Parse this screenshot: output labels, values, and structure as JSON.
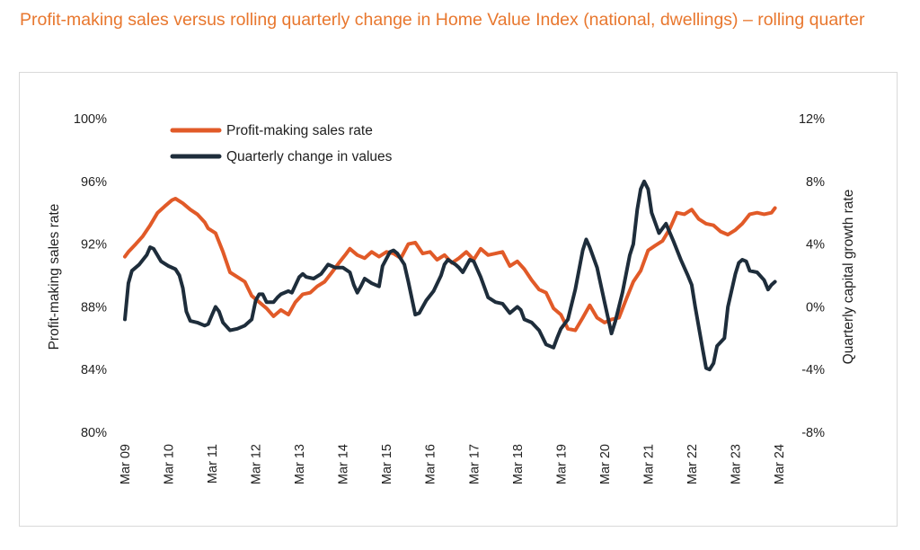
{
  "chart_data": {
    "type": "line",
    "title": "Profit-making sales versus rolling quarterly change in Home Value Index (national, dwellings) – rolling quarter",
    "ylabel": "Profit-making sales rate",
    "y2label": "Quarterly capital growth rate",
    "ylim": [
      80,
      100
    ],
    "y2lim": [
      -8,
      12
    ],
    "yticks": [
      "100%",
      "96%",
      "92%",
      "88%",
      "84%",
      "80%"
    ],
    "y2ticks": [
      "12%",
      "8%",
      "4%",
      "0%",
      "-4%",
      "-8%"
    ],
    "xlim": [
      2009.17,
      2024.17
    ],
    "xticks": [
      "Mar 09",
      "Mar 10",
      "Mar 11",
      "Mar 12",
      "Mar 13",
      "Mar 14",
      "Mar 15",
      "Mar 16",
      "Mar 17",
      "Mar 18",
      "Mar 19",
      "Mar 20",
      "Mar 21",
      "Mar 22",
      "Mar 23",
      "Mar 24"
    ],
    "legend_position": "top-left",
    "grid": false,
    "series": [
      {
        "name": "Profit-making sales rate",
        "axis": "left",
        "color": "#e15a28",
        "points": [
          [
            2009.17,
            91.2
          ],
          [
            2009.25,
            91.5
          ],
          [
            2009.42,
            92.0
          ],
          [
            2009.58,
            92.5
          ],
          [
            2009.75,
            93.2
          ],
          [
            2009.92,
            94.0
          ],
          [
            2010.08,
            94.4
          ],
          [
            2010.25,
            94.8
          ],
          [
            2010.33,
            94.9
          ],
          [
            2010.5,
            94.6
          ],
          [
            2010.67,
            94.2
          ],
          [
            2010.83,
            93.9
          ],
          [
            2011.0,
            93.4
          ],
          [
            2011.08,
            93.0
          ],
          [
            2011.25,
            92.7
          ],
          [
            2011.42,
            91.5
          ],
          [
            2011.58,
            90.2
          ],
          [
            2011.75,
            89.9
          ],
          [
            2011.92,
            89.6
          ],
          [
            2012.08,
            88.7
          ],
          [
            2012.25,
            88.3
          ],
          [
            2012.42,
            87.9
          ],
          [
            2012.58,
            87.4
          ],
          [
            2012.75,
            87.8
          ],
          [
            2012.92,
            87.5
          ],
          [
            2013.08,
            88.3
          ],
          [
            2013.25,
            88.8
          ],
          [
            2013.42,
            88.9
          ],
          [
            2013.58,
            89.3
          ],
          [
            2013.75,
            89.6
          ],
          [
            2013.92,
            90.2
          ],
          [
            2014.08,
            90.8
          ],
          [
            2014.25,
            91.4
          ],
          [
            2014.33,
            91.7
          ],
          [
            2014.5,
            91.3
          ],
          [
            2014.67,
            91.1
          ],
          [
            2014.83,
            91.5
          ],
          [
            2015.0,
            91.2
          ],
          [
            2015.17,
            91.5
          ],
          [
            2015.33,
            91.4
          ],
          [
            2015.5,
            91.1
          ],
          [
            2015.67,
            92.0
          ],
          [
            2015.83,
            92.1
          ],
          [
            2016.0,
            91.4
          ],
          [
            2016.17,
            91.5
          ],
          [
            2016.33,
            91.0
          ],
          [
            2016.5,
            91.3
          ],
          [
            2016.67,
            90.8
          ],
          [
            2016.83,
            91.1
          ],
          [
            2017.0,
            91.5
          ],
          [
            2017.17,
            91.0
          ],
          [
            2017.33,
            91.7
          ],
          [
            2017.5,
            91.3
          ],
          [
            2017.67,
            91.4
          ],
          [
            2017.83,
            91.5
          ],
          [
            2018.0,
            90.6
          ],
          [
            2018.17,
            90.9
          ],
          [
            2018.33,
            90.4
          ],
          [
            2018.5,
            89.7
          ],
          [
            2018.67,
            89.1
          ],
          [
            2018.83,
            88.9
          ],
          [
            2019.0,
            87.9
          ],
          [
            2019.17,
            87.5
          ],
          [
            2019.33,
            86.6
          ],
          [
            2019.5,
            86.5
          ],
          [
            2019.67,
            87.3
          ],
          [
            2019.83,
            88.1
          ],
          [
            2020.0,
            87.3
          ],
          [
            2020.17,
            87.0
          ],
          [
            2020.33,
            87.2
          ],
          [
            2020.5,
            87.3
          ],
          [
            2020.67,
            88.5
          ],
          [
            2020.83,
            89.6
          ],
          [
            2021.0,
            90.3
          ],
          [
            2021.17,
            91.6
          ],
          [
            2021.33,
            91.9
          ],
          [
            2021.5,
            92.2
          ],
          [
            2021.67,
            93.0
          ],
          [
            2021.83,
            94.0
          ],
          [
            2022.0,
            93.9
          ],
          [
            2022.17,
            94.2
          ],
          [
            2022.33,
            93.6
          ],
          [
            2022.5,
            93.3
          ],
          [
            2022.67,
            93.2
          ],
          [
            2022.83,
            92.8
          ],
          [
            2023.0,
            92.6
          ],
          [
            2023.17,
            92.9
          ],
          [
            2023.33,
            93.3
          ],
          [
            2023.5,
            93.9
          ],
          [
            2023.67,
            94.0
          ],
          [
            2023.83,
            93.9
          ],
          [
            2024.0,
            94.0
          ],
          [
            2024.08,
            94.3
          ]
        ]
      },
      {
        "name": "Quarterly change in values",
        "axis": "right",
        "color": "#1e2d3b",
        "points": [
          [
            2009.17,
            -0.8
          ],
          [
            2009.25,
            1.5
          ],
          [
            2009.33,
            2.3
          ],
          [
            2009.5,
            2.7
          ],
          [
            2009.67,
            3.3
          ],
          [
            2009.75,
            3.8
          ],
          [
            2009.83,
            3.7
          ],
          [
            2010.0,
            2.9
          ],
          [
            2010.17,
            2.6
          ],
          [
            2010.33,
            2.4
          ],
          [
            2010.42,
            2.0
          ],
          [
            2010.5,
            1.2
          ],
          [
            2010.58,
            -0.3
          ],
          [
            2010.67,
            -0.9
          ],
          [
            2010.83,
            -1.0
          ],
          [
            2011.0,
            -1.2
          ],
          [
            2011.08,
            -1.1
          ],
          [
            2011.17,
            -0.5
          ],
          [
            2011.25,
            0.0
          ],
          [
            2011.33,
            -0.3
          ],
          [
            2011.42,
            -1.0
          ],
          [
            2011.58,
            -1.5
          ],
          [
            2011.75,
            -1.4
          ],
          [
            2011.92,
            -1.2
          ],
          [
            2012.08,
            -0.8
          ],
          [
            2012.17,
            0.4
          ],
          [
            2012.25,
            0.8
          ],
          [
            2012.33,
            0.8
          ],
          [
            2012.42,
            0.3
          ],
          [
            2012.58,
            0.3
          ],
          [
            2012.67,
            0.6
          ],
          [
            2012.75,
            0.8
          ],
          [
            2012.92,
            1.0
          ],
          [
            2013.0,
            0.9
          ],
          [
            2013.17,
            1.9
          ],
          [
            2013.25,
            2.1
          ],
          [
            2013.33,
            1.9
          ],
          [
            2013.5,
            1.8
          ],
          [
            2013.67,
            2.1
          ],
          [
            2013.83,
            2.7
          ],
          [
            2014.0,
            2.5
          ],
          [
            2014.17,
            2.5
          ],
          [
            2014.33,
            2.2
          ],
          [
            2014.42,
            1.4
          ],
          [
            2014.5,
            0.9
          ],
          [
            2014.58,
            1.3
          ],
          [
            2014.67,
            1.8
          ],
          [
            2014.83,
            1.5
          ],
          [
            2015.0,
            1.3
          ],
          [
            2015.08,
            2.6
          ],
          [
            2015.25,
            3.5
          ],
          [
            2015.33,
            3.6
          ],
          [
            2015.42,
            3.4
          ],
          [
            2015.58,
            2.7
          ],
          [
            2015.67,
            1.6
          ],
          [
            2015.83,
            -0.5
          ],
          [
            2015.92,
            -0.4
          ],
          [
            2016.08,
            0.4
          ],
          [
            2016.25,
            1.0
          ],
          [
            2016.42,
            2.0
          ],
          [
            2016.5,
            2.7
          ],
          [
            2016.58,
            3.0
          ],
          [
            2016.75,
            2.7
          ],
          [
            2016.83,
            2.5
          ],
          [
            2016.92,
            2.2
          ],
          [
            2017.0,
            2.6
          ],
          [
            2017.08,
            3.0
          ],
          [
            2017.17,
            2.9
          ],
          [
            2017.33,
            1.9
          ],
          [
            2017.5,
            0.6
          ],
          [
            2017.67,
            0.3
          ],
          [
            2017.83,
            0.2
          ],
          [
            2018.0,
            -0.4
          ],
          [
            2018.17,
            0.0
          ],
          [
            2018.25,
            -0.2
          ],
          [
            2018.33,
            -0.8
          ],
          [
            2018.5,
            -1.0
          ],
          [
            2018.67,
            -1.5
          ],
          [
            2018.83,
            -2.4
          ],
          [
            2019.0,
            -2.6
          ],
          [
            2019.08,
            -2.0
          ],
          [
            2019.17,
            -1.4
          ],
          [
            2019.33,
            -0.8
          ],
          [
            2019.5,
            1.1
          ],
          [
            2019.67,
            3.6
          ],
          [
            2019.75,
            4.3
          ],
          [
            2019.83,
            3.8
          ],
          [
            2020.0,
            2.5
          ],
          [
            2020.17,
            0.3
          ],
          [
            2020.33,
            -1.7
          ],
          [
            2020.42,
            -0.9
          ],
          [
            2020.58,
            0.9
          ],
          [
            2020.75,
            3.3
          ],
          [
            2020.83,
            4.0
          ],
          [
            2020.92,
            6.2
          ],
          [
            2021.0,
            7.5
          ],
          [
            2021.08,
            8.0
          ],
          [
            2021.17,
            7.5
          ],
          [
            2021.25,
            6.0
          ],
          [
            2021.42,
            4.7
          ],
          [
            2021.58,
            5.3
          ],
          [
            2021.75,
            4.2
          ],
          [
            2021.92,
            3.0
          ],
          [
            2022.0,
            2.5
          ],
          [
            2022.08,
            2.0
          ],
          [
            2022.17,
            1.4
          ],
          [
            2022.25,
            0.0
          ],
          [
            2022.42,
            -2.7
          ],
          [
            2022.5,
            -3.9
          ],
          [
            2022.58,
            -4.0
          ],
          [
            2022.67,
            -3.6
          ],
          [
            2022.75,
            -2.5
          ],
          [
            2022.92,
            -2.0
          ],
          [
            2023.0,
            0.0
          ],
          [
            2023.17,
            2.1
          ],
          [
            2023.25,
            2.8
          ],
          [
            2023.33,
            3.0
          ],
          [
            2023.42,
            2.9
          ],
          [
            2023.5,
            2.3
          ],
          [
            2023.67,
            2.2
          ],
          [
            2023.83,
            1.7
          ],
          [
            2023.92,
            1.1
          ],
          [
            2024.0,
            1.4
          ],
          [
            2024.08,
            1.6
          ]
        ]
      }
    ]
  }
}
